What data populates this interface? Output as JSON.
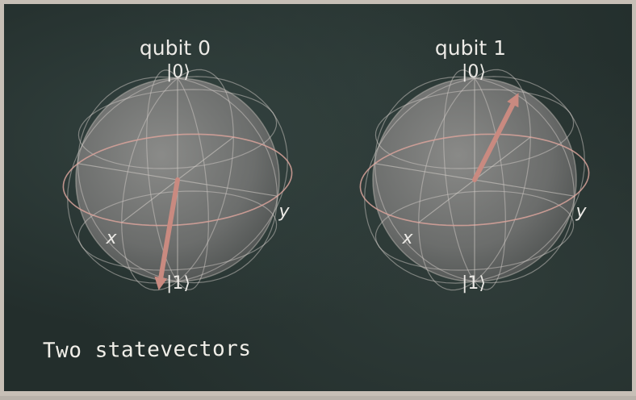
{
  "caption": "Two statevectors",
  "spheres": [
    {
      "title": "qubit 0",
      "ket_top": "|0⟩",
      "ket_bottom": "|1⟩",
      "axis_x": "x",
      "axis_y": "y",
      "arrow_theta_deg": 150,
      "arrow_phi_deg": 10
    },
    {
      "title": "qubit 1",
      "ket_top": "|0⟩",
      "ket_bottom": "|1⟩",
      "axis_x": "x",
      "axis_y": "y",
      "arrow_theta_deg": 25,
      "arrow_phi_deg": 95
    }
  ],
  "colors": {
    "board": "#232e2c",
    "frame": "#c7bfb6",
    "sphere": "#8c8a88",
    "equator": "#d9a39b",
    "arrow": "#c98a80",
    "text": "#eceae6"
  }
}
